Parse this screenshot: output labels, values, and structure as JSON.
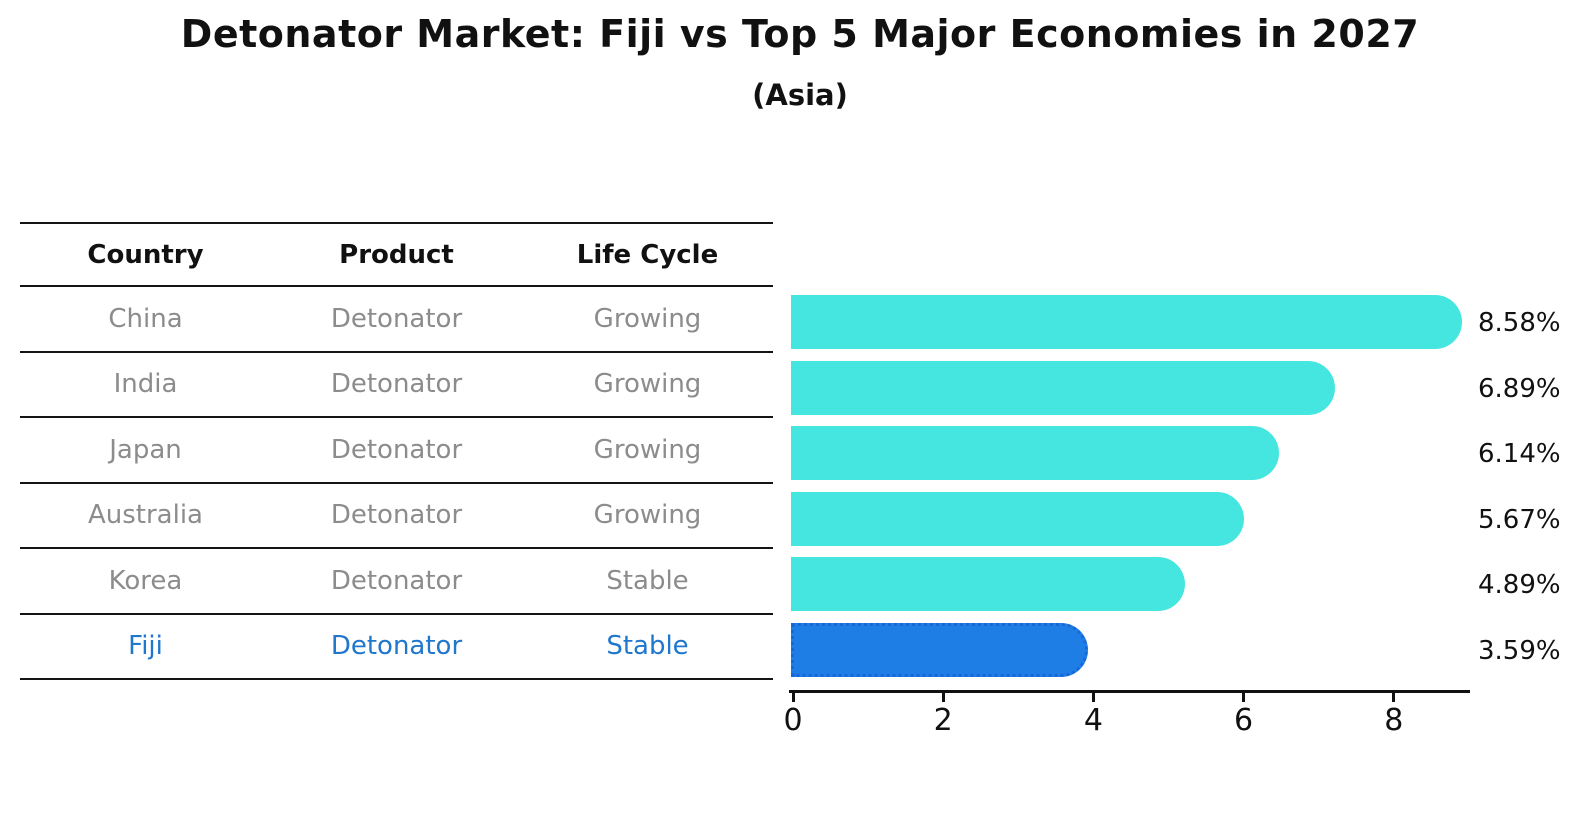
{
  "header": {
    "title": "Detonator Market: Fiji vs Top 5 Major Economies in 2027",
    "subtitle": "(Asia)"
  },
  "table": {
    "columns": [
      "Country",
      "Product",
      "Life Cycle"
    ],
    "rows": [
      {
        "country": "China",
        "product": "Detonator",
        "life_cycle": "Growing"
      },
      {
        "country": "India",
        "product": "Detonator",
        "life_cycle": "Growing"
      },
      {
        "country": "Japan",
        "product": "Detonator",
        "life_cycle": "Growing"
      },
      {
        "country": "Australia",
        "product": "Detonator",
        "life_cycle": "Growing"
      },
      {
        "country": "Korea",
        "product": "Detonator",
        "life_cycle": "Stable"
      },
      {
        "country": "Fiji",
        "product": "Detonator",
        "life_cycle": "Stable"
      }
    ],
    "highlight_row": "Fiji"
  },
  "chart_data": {
    "type": "bar",
    "orientation": "horizontal",
    "title": "Detonator Market: Fiji vs Top 5 Major Economies in 2027",
    "subtitle": "(Asia)",
    "categories": [
      "China",
      "India",
      "Japan",
      "Australia",
      "Korea",
      "Fiji"
    ],
    "values": [
      8.58,
      6.89,
      6.14,
      5.67,
      4.89,
      3.59
    ],
    "value_labels": [
      "8.58%",
      "6.89%",
      "6.14%",
      "5.67%",
      "4.89%",
      "3.59%"
    ],
    "x_ticks": [
      0,
      2,
      4,
      6,
      8
    ],
    "xlim": [
      0,
      9
    ],
    "grid": false,
    "legend": false,
    "bar_color": "#45e6e0",
    "highlight_index": 5,
    "highlight_fill": "#1e7ee6",
    "highlight_border": "#1668d8"
  },
  "colors": {
    "background": "#ffffff",
    "text": "#111111",
    "muted_row_text": "#8c8c8c",
    "highlight_text": "#2077cc",
    "table_line": "#141414"
  }
}
